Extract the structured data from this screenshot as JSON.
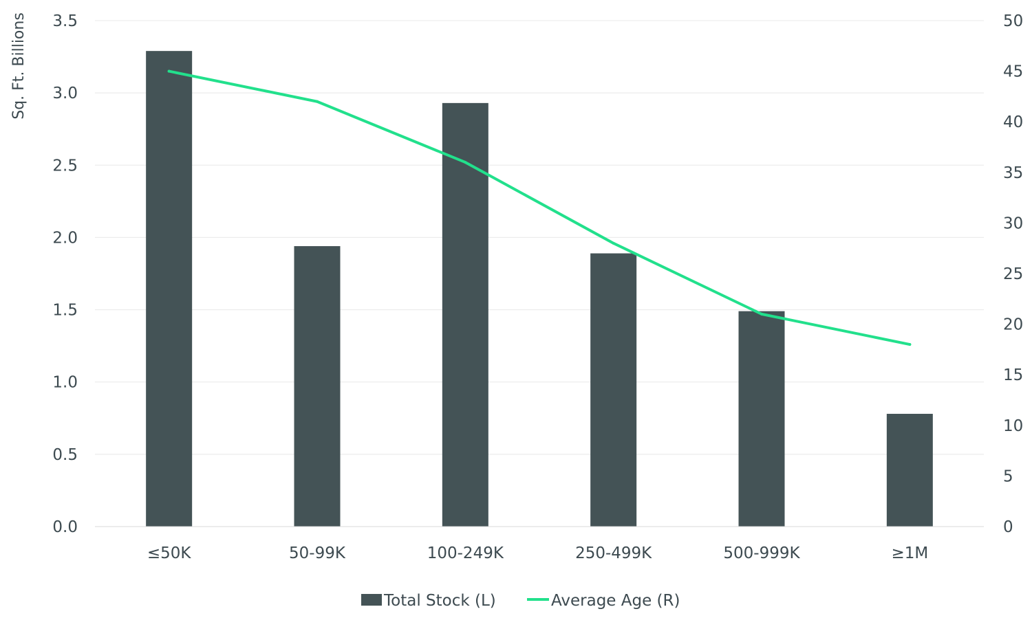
{
  "chart_data": {
    "type": "bar",
    "categories": [
      "≤50K",
      "50-99K",
      "100-249K",
      "250-499K",
      "500-999K",
      "≥1M"
    ],
    "series": [
      {
        "name": "Total Stock (L)",
        "type": "bar",
        "axis": "left",
        "values": [
          3.29,
          1.94,
          2.93,
          1.89,
          1.49,
          0.78
        ],
        "color": "#445356"
      },
      {
        "name": "Average Age (R)",
        "type": "line",
        "axis": "right",
        "values": [
          45,
          42,
          36,
          28,
          21,
          18
        ],
        "color": "#22e08c"
      }
    ],
    "ylabel": "Sq. Ft. Billions",
    "ylim": [
      0,
      3.5
    ],
    "yticks": [
      "0.0",
      "0.5",
      "1.0",
      "1.5",
      "2.0",
      "2.5",
      "3.0",
      "3.5"
    ],
    "y2lim": [
      0,
      50
    ],
    "y2ticks": [
      "0",
      "5",
      "10",
      "15",
      "20",
      "25",
      "30",
      "35",
      "40",
      "45",
      "50"
    ],
    "grid": true,
    "gridColor": "#e8e8e8",
    "legend_position": "bottom-center"
  }
}
